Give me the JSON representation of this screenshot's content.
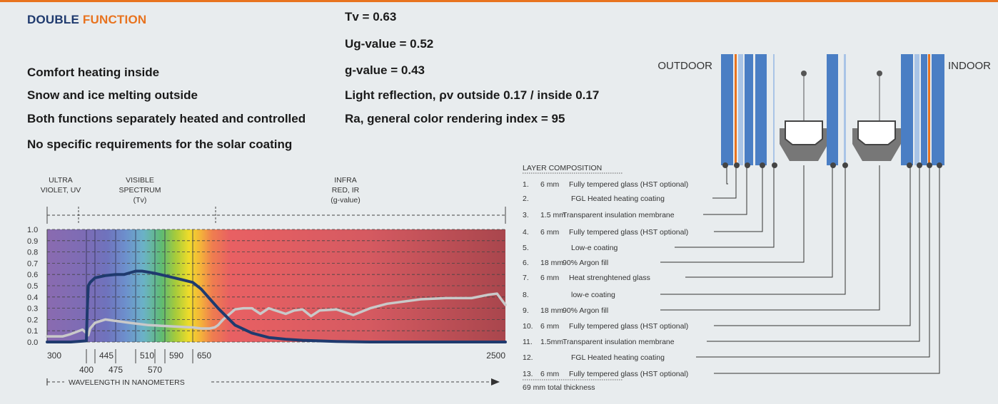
{
  "title": {
    "part1": "DOUBLE",
    "part2": "FUNCTION"
  },
  "features": [
    "Comfort heating inside",
    "Snow and ice melting outside",
    "Both functions separately heated and controlled",
    "No specific requirements for the solar coating"
  ],
  "specs": [
    "Tv = 0.63",
    "Ug-value = 0.52",
    "g-value = 0.43",
    "Light reflection, ρv outside 0.17 / inside 0.17",
    "Ra, general color rendering index = 95"
  ],
  "colors": {
    "accent": "#e8731f",
    "navy": "#1f3a6e",
    "glass": "#4a7ec4",
    "membrane": "#a9c4e6"
  },
  "chart_data": {
    "type": "line",
    "regions": [
      {
        "label1": "ULTRA",
        "label2": "VIOLET, UV"
      },
      {
        "label1": "VISIBLE",
        "label2": "SPECTRUM",
        "label3": "(Tv)"
      },
      {
        "label1": "INFRA",
        "label2": "RED, IR",
        "label3": "(g-value)"
      }
    ],
    "yticks": [
      "1.0",
      "0.9",
      "0.8",
      "0.7",
      "0.6",
      "0.5",
      "0.4",
      "0.3",
      "0.2",
      "0.1",
      "0.0"
    ],
    "ylim": [
      0,
      1
    ],
    "xticks_upper": [
      "300",
      "445",
      "510",
      "590",
      "650",
      "2500"
    ],
    "xticks_lower": [
      "400",
      "475",
      "570"
    ],
    "xlabel": "WAVELENGTH IN NANOMETERS",
    "grid": true,
    "series": [
      {
        "color": "#1f3a6e",
        "x": [
          300,
          360,
          400,
          405,
          410,
          420,
          445,
          460,
          475,
          490,
          510,
          530,
          550,
          570,
          590,
          610,
          630,
          650,
          700,
          800,
          900,
          1000,
          1100,
          1200,
          1300,
          1500,
          1700,
          2000,
          2500
        ],
        "y": [
          0.0,
          0.0,
          0.01,
          0.3,
          0.5,
          0.53,
          0.57,
          0.59,
          0.6,
          0.6,
          0.63,
          0.63,
          0.62,
          0.61,
          0.59,
          0.57,
          0.55,
          0.53,
          0.47,
          0.3,
          0.15,
          0.08,
          0.04,
          0.025,
          0.015,
          0.005,
          0.0,
          0.0,
          0.0
        ]
      },
      {
        "color": "#c9c9c9",
        "x": [
          300,
          340,
          360,
          390,
          400,
          410,
          420,
          445,
          460,
          500,
          550,
          600,
          650,
          700,
          750,
          780,
          800,
          830,
          900,
          950,
          1000,
          1050,
          1100,
          1200,
          1250,
          1300,
          1350,
          1400,
          1500,
          1600,
          1700,
          1800,
          2000,
          2150,
          2300,
          2400,
          2450,
          2500
        ],
        "y": [
          0.05,
          0.05,
          0.07,
          0.11,
          0.08,
          0.06,
          0.12,
          0.17,
          0.2,
          0.17,
          0.15,
          0.14,
          0.13,
          0.12,
          0.12,
          0.13,
          0.15,
          0.2,
          0.29,
          0.3,
          0.3,
          0.25,
          0.3,
          0.25,
          0.28,
          0.29,
          0.23,
          0.28,
          0.29,
          0.24,
          0.3,
          0.34,
          0.38,
          0.39,
          0.39,
          0.42,
          0.43,
          0.33
        ]
      }
    ]
  },
  "diagram": {
    "outdoor_label": "OUTDOOR",
    "indoor_label": "INDOOR",
    "composition_title": "LAYER COMPOSITION",
    "layers": [
      {
        "num": "1.",
        "thk": "6 mm",
        "desc": "Fully tempered glass (HST optional)"
      },
      {
        "num": "2.",
        "thk": "",
        "desc": "FGL Heated heating coating"
      },
      {
        "num": "3.",
        "thk": "1.5 mm",
        "desc": "Transparent insulation membrane"
      },
      {
        "num": "4.",
        "thk": "6 mm",
        "desc": "Fully tempered glass (HST optional)"
      },
      {
        "num": "5.",
        "thk": "",
        "desc": "Low-e coating"
      },
      {
        "num": "6.",
        "thk": "18 mm",
        "desc": "90% Argon fill"
      },
      {
        "num": "7.",
        "thk": "6 mm",
        "desc": "Heat strenghtened glass"
      },
      {
        "num": "8.",
        "thk": "",
        "desc": "low-e coating"
      },
      {
        "num": "9.",
        "thk": "18 mm",
        "desc": "90% Argon fill"
      },
      {
        "num": "10.",
        "thk": "6 mm",
        "desc": "Fully tempered glass (HST optional)"
      },
      {
        "num": "11.",
        "thk": "1.5mm",
        "desc": "Transparent insulation membrane"
      },
      {
        "num": "12.",
        "thk": "",
        "desc": "FGL Heated heating coating"
      },
      {
        "num": "13.",
        "thk": "6 mm",
        "desc": "Fully tempered glass (HST optional)"
      }
    ],
    "total": "69 mm total thickness"
  }
}
